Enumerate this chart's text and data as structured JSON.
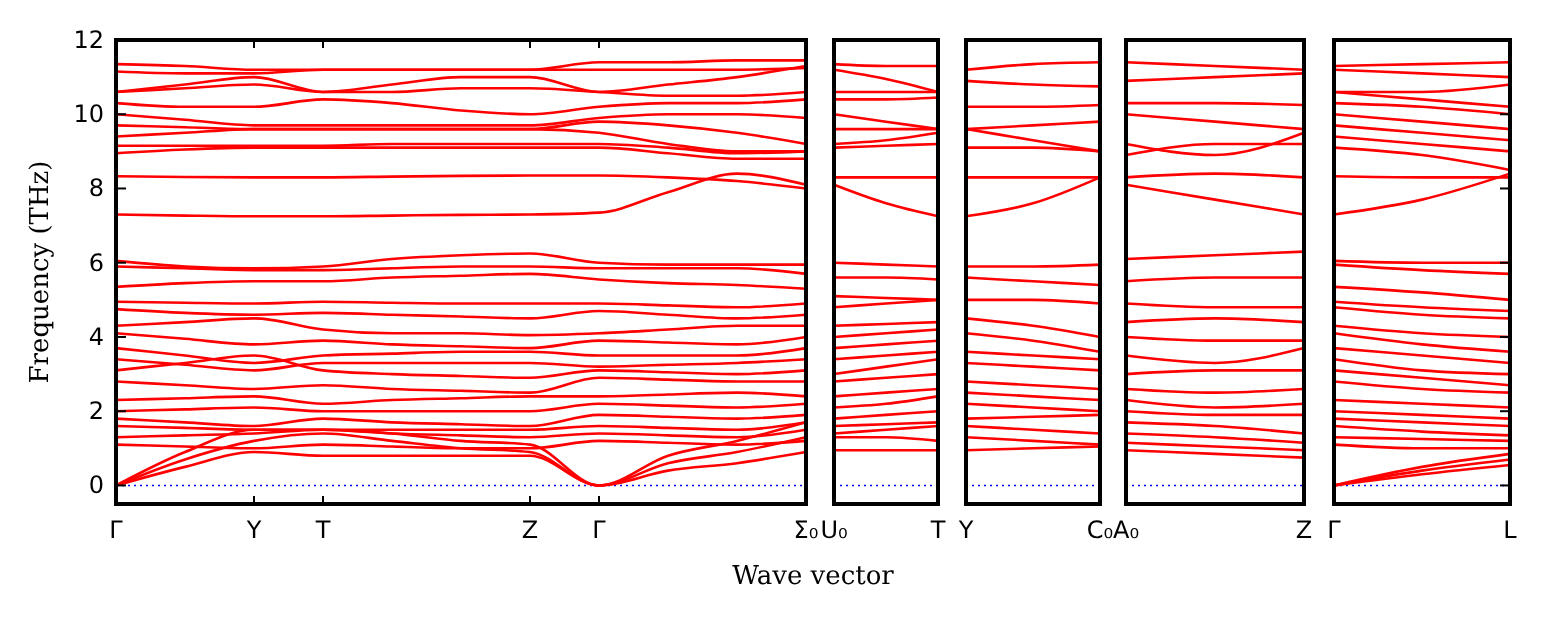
{
  "chart_data": [
    {
      "type": "line",
      "ylabel": "Frequency (THz)",
      "xlabel": "Wave vector",
      "categories": [
        "Γ",
        null,
        "Y",
        "T",
        null,
        null,
        "Z",
        "Γ",
        null,
        null,
        "Σ₀"
      ],
      "ylim": [
        -0.5,
        12
      ],
      "yticks": [
        0,
        2,
        4,
        6,
        8,
        10,
        12
      ],
      "ref_lines": [
        {
          "axis": "y",
          "value": 0,
          "color": "#0000ff",
          "line_style": "dotted"
        }
      ],
      "series": [
        {
          "color": "#ff0000",
          "values": [
            11.35,
            11.3,
            11.2,
            11.2,
            11.2,
            11.2,
            11.2,
            11.4,
            11.4,
            11.45,
            11.45
          ]
        },
        {
          "color": "#ff0000",
          "values": [
            11.15,
            11.1,
            11.1,
            11.2,
            11.2,
            11.2,
            11.2,
            11.2,
            11.2,
            11.2,
            11.25
          ]
        },
        {
          "color": "#ff0000",
          "values": [
            10.6,
            10.8,
            11.0,
            10.6,
            10.8,
            11.0,
            11.0,
            10.6,
            10.8,
            11.0,
            11.3
          ]
        },
        {
          "color": "#ff0000",
          "values": [
            10.6,
            10.7,
            10.8,
            10.6,
            10.6,
            10.7,
            10.7,
            10.6,
            10.5,
            10.5,
            10.6
          ]
        },
        {
          "color": "#ff0000",
          "values": [
            10.3,
            10.2,
            10.2,
            10.4,
            10.3,
            10.1,
            10.0,
            10.2,
            10.3,
            10.3,
            10.4
          ]
        },
        {
          "color": "#ff0000",
          "values": [
            10.0,
            9.85,
            9.7,
            9.7,
            9.7,
            9.7,
            9.7,
            9.9,
            10.0,
            10.0,
            9.9
          ]
        },
        {
          "color": "#ff0000",
          "values": [
            9.7,
            9.65,
            9.6,
            9.6,
            9.6,
            9.6,
            9.6,
            9.8,
            9.7,
            9.5,
            9.2
          ]
        },
        {
          "color": "#ff0000",
          "values": [
            9.4,
            9.5,
            9.6,
            9.6,
            9.6,
            9.6,
            9.6,
            9.5,
            9.2,
            9.0,
            9.0
          ]
        },
        {
          "color": "#ff0000",
          "values": [
            9.15,
            9.15,
            9.15,
            9.15,
            9.2,
            9.2,
            9.2,
            9.2,
            9.1,
            8.95,
            9.0
          ]
        },
        {
          "color": "#ff0000",
          "values": [
            8.95,
            9.05,
            9.1,
            9.1,
            9.1,
            9.1,
            9.1,
            9.1,
            8.95,
            8.8,
            8.8
          ]
        },
        {
          "color": "#ff0000",
          "values": [
            8.33,
            8.31,
            8.3,
            8.3,
            8.32,
            8.34,
            8.35,
            8.35,
            8.3,
            8.2,
            8.0
          ]
        },
        {
          "color": "#ff0000",
          "values": [
            7.3,
            7.27,
            7.25,
            7.25,
            7.27,
            7.29,
            7.3,
            7.35,
            7.9,
            8.4,
            8.1
          ]
        },
        {
          "color": "#ff0000",
          "values": [
            6.05,
            5.9,
            5.85,
            5.9,
            6.1,
            6.2,
            6.25,
            6.0,
            5.95,
            5.95,
            5.95
          ]
        },
        {
          "color": "#ff0000",
          "values": [
            5.9,
            5.85,
            5.8,
            5.8,
            5.85,
            5.9,
            5.9,
            5.85,
            5.85,
            5.85,
            5.7
          ]
        },
        {
          "color": "#ff0000",
          "values": [
            5.35,
            5.45,
            5.5,
            5.5,
            5.6,
            5.65,
            5.7,
            5.55,
            5.45,
            5.4,
            5.3
          ]
        },
        {
          "color": "#ff0000",
          "values": [
            4.95,
            4.92,
            4.9,
            4.95,
            4.92,
            4.9,
            4.9,
            4.9,
            4.85,
            4.8,
            4.9
          ]
        },
        {
          "color": "#ff0000",
          "values": [
            4.75,
            4.65,
            4.6,
            4.65,
            4.6,
            4.55,
            4.5,
            4.7,
            4.6,
            4.5,
            4.6
          ]
        },
        {
          "color": "#ff0000",
          "values": [
            4.3,
            4.4,
            4.5,
            4.2,
            4.1,
            4.1,
            4.05,
            4.1,
            4.2,
            4.3,
            4.3
          ]
        },
        {
          "color": "#ff0000",
          "values": [
            4.1,
            3.95,
            3.8,
            3.9,
            3.8,
            3.75,
            3.7,
            3.9,
            3.85,
            3.8,
            4.0
          ]
        },
        {
          "color": "#ff0000",
          "values": [
            3.7,
            3.5,
            3.3,
            3.5,
            3.55,
            3.6,
            3.6,
            3.5,
            3.5,
            3.5,
            3.7
          ]
        },
        {
          "color": "#ff0000",
          "values": [
            3.4,
            3.25,
            3.1,
            3.3,
            3.3,
            3.3,
            3.3,
            3.2,
            3.25,
            3.3,
            3.4
          ]
        },
        {
          "color": "#ff0000",
          "values": [
            3.1,
            3.3,
            3.5,
            3.1,
            3.0,
            2.95,
            2.9,
            3.1,
            3.05,
            3.0,
            3.1
          ]
        },
        {
          "color": "#ff0000",
          "values": [
            2.8,
            2.7,
            2.6,
            2.7,
            2.6,
            2.55,
            2.5,
            2.9,
            2.85,
            2.8,
            2.8
          ]
        },
        {
          "color": "#ff0000",
          "values": [
            2.3,
            2.35,
            2.4,
            2.2,
            2.3,
            2.35,
            2.4,
            2.4,
            2.45,
            2.5,
            2.4
          ]
        },
        {
          "color": "#ff0000",
          "values": [
            2.0,
            2.05,
            2.1,
            2.0,
            2.0,
            2.0,
            2.0,
            2.2,
            2.15,
            2.1,
            2.2
          ]
        },
        {
          "color": "#ff0000",
          "values": [
            1.8,
            1.7,
            1.6,
            1.8,
            1.7,
            1.65,
            1.6,
            1.9,
            1.85,
            1.8,
            1.9
          ]
        },
        {
          "color": "#ff0000",
          "values": [
            1.6,
            1.55,
            1.5,
            1.5,
            1.5,
            1.5,
            1.5,
            1.6,
            1.55,
            1.5,
            1.7
          ]
        },
        {
          "color": "#ff0000",
          "values": [
            1.3,
            1.35,
            1.4,
            1.5,
            1.4,
            1.35,
            1.3,
            1.4,
            1.35,
            1.3,
            1.5
          ]
        },
        {
          "color": "#ff0000",
          "values": [
            1.1,
            1.05,
            1.0,
            1.1,
            1.05,
            1.0,
            1.0,
            1.2,
            1.15,
            1.1,
            1.2
          ]
        },
        {
          "color": "#ff0000",
          "values": [
            0,
            0.9,
            1.5,
            1.5,
            1.4,
            1.2,
            1.1,
            0,
            0.8,
            1.2,
            1.7
          ]
        },
        {
          "color": "#ff0000",
          "values": [
            0,
            0.7,
            1.2,
            1.4,
            1.2,
            1.0,
            0.9,
            0,
            0.6,
            0.9,
            1.3
          ]
        },
        {
          "color": "#ff0000",
          "values": [
            0,
            0.5,
            0.9,
            0.8,
            0.8,
            0.8,
            0.8,
            0,
            0.4,
            0.6,
            0.9
          ]
        }
      ]
    },
    {
      "type": "line",
      "categories": [
        "U₀",
        null,
        "T"
      ],
      "ylim": [
        -0.5,
        12
      ],
      "yticks": [
        0,
        2,
        4,
        6,
        8,
        10,
        12
      ],
      "tick_labels": "x",
      "ref_lines": [
        {
          "axis": "y",
          "value": 0,
          "color": "#0000ff",
          "line_style": "dotted"
        }
      ],
      "series": [
        {
          "color": "#ff0000",
          "values": [
            11.35,
            11.3,
            11.3
          ]
        },
        {
          "color": "#ff0000",
          "values": [
            11.2,
            10.95,
            10.6
          ]
        },
        {
          "color": "#ff0000",
          "values": [
            10.6,
            10.6,
            10.6
          ]
        },
        {
          "color": "#ff0000",
          "values": [
            10.4,
            10.4,
            10.45
          ]
        },
        {
          "color": "#ff0000",
          "values": [
            10.0,
            9.8,
            9.6
          ]
        },
        {
          "color": "#ff0000",
          "values": [
            9.6,
            9.6,
            9.6
          ]
        },
        {
          "color": "#ff0000",
          "values": [
            9.2,
            9.3,
            9.5
          ]
        },
        {
          "color": "#ff0000",
          "values": [
            9.1,
            9.15,
            9.2
          ]
        },
        {
          "color": "#ff0000",
          "values": [
            8.3,
            8.3,
            8.3
          ]
        },
        {
          "color": "#ff0000",
          "values": [
            8.1,
            7.6,
            7.25
          ]
        },
        {
          "color": "#ff0000",
          "values": [
            6.0,
            5.95,
            5.9
          ]
        },
        {
          "color": "#ff0000",
          "values": [
            5.6,
            5.6,
            5.55
          ]
        },
        {
          "color": "#ff0000",
          "values": [
            5.1,
            5.05,
            5.0
          ]
        },
        {
          "color": "#ff0000",
          "values": [
            4.8,
            4.9,
            5.0
          ]
        },
        {
          "color": "#ff0000",
          "values": [
            4.3,
            4.35,
            4.4
          ]
        },
        {
          "color": "#ff0000",
          "values": [
            4.0,
            4.1,
            4.2
          ]
        },
        {
          "color": "#ff0000",
          "values": [
            3.7,
            3.8,
            3.9
          ]
        },
        {
          "color": "#ff0000",
          "values": [
            3.4,
            3.5,
            3.6
          ]
        },
        {
          "color": "#ff0000",
          "values": [
            3.0,
            3.2,
            3.4
          ]
        },
        {
          "color": "#ff0000",
          "values": [
            2.8,
            2.9,
            3.0
          ]
        },
        {
          "color": "#ff0000",
          "values": [
            2.4,
            2.5,
            2.6
          ]
        },
        {
          "color": "#ff0000",
          "values": [
            2.1,
            2.2,
            2.4
          ]
        },
        {
          "color": "#ff0000",
          "values": [
            1.8,
            1.9,
            2.0
          ]
        },
        {
          "color": "#ff0000",
          "values": [
            1.6,
            1.65,
            1.7
          ]
        },
        {
          "color": "#ff0000",
          "values": [
            1.4,
            1.5,
            1.6
          ]
        },
        {
          "color": "#ff0000",
          "values": [
            1.3,
            1.3,
            1.2
          ]
        },
        {
          "color": "#ff0000",
          "values": [
            0.95,
            0.95,
            0.95
          ]
        }
      ]
    },
    {
      "type": "line",
      "categories": [
        "Y",
        null,
        "C₀"
      ],
      "ylim": [
        -0.5,
        12
      ],
      "yticks": [
        0,
        2,
        4,
        6,
        8,
        10,
        12
      ],
      "tick_labels": "x",
      "ref_lines": [
        {
          "axis": "y",
          "value": 0,
          "color": "#0000ff",
          "line_style": "dotted"
        }
      ],
      "series": [
        {
          "color": "#ff0000",
          "values": [
            11.2,
            11.35,
            11.4
          ]
        },
        {
          "color": "#ff0000",
          "values": [
            10.9,
            10.8,
            10.75
          ]
        },
        {
          "color": "#ff0000",
          "values": [
            10.2,
            10.2,
            10.25
          ]
        },
        {
          "color": "#ff0000",
          "values": [
            9.6,
            9.7,
            9.8
          ]
        },
        {
          "color": "#ff0000",
          "values": [
            9.6,
            9.3,
            9.0
          ]
        },
        {
          "color": "#ff0000",
          "values": [
            9.1,
            9.1,
            9.0
          ]
        },
        {
          "color": "#ff0000",
          "values": [
            8.3,
            8.3,
            8.3
          ]
        },
        {
          "color": "#ff0000",
          "values": [
            7.25,
            7.6,
            8.3
          ]
        },
        {
          "color": "#ff0000",
          "values": [
            5.9,
            5.9,
            5.95
          ]
        },
        {
          "color": "#ff0000",
          "values": [
            5.6,
            5.5,
            5.4
          ]
        },
        {
          "color": "#ff0000",
          "values": [
            5.0,
            5.0,
            4.9
          ]
        },
        {
          "color": "#ff0000",
          "values": [
            4.5,
            4.3,
            4.0
          ]
        },
        {
          "color": "#ff0000",
          "values": [
            4.1,
            3.9,
            3.6
          ]
        },
        {
          "color": "#ff0000",
          "values": [
            3.6,
            3.5,
            3.4
          ]
        },
        {
          "color": "#ff0000",
          "values": [
            3.3,
            3.2,
            3.1
          ]
        },
        {
          "color": "#ff0000",
          "values": [
            2.8,
            2.7,
            2.6
          ]
        },
        {
          "color": "#ff0000",
          "values": [
            2.5,
            2.4,
            2.3
          ]
        },
        {
          "color": "#ff0000",
          "values": [
            2.2,
            2.1,
            2.0
          ]
        },
        {
          "color": "#ff0000",
          "values": [
            1.8,
            1.85,
            1.9
          ]
        },
        {
          "color": "#ff0000",
          "values": [
            1.6,
            1.5,
            1.4
          ]
        },
        {
          "color": "#ff0000",
          "values": [
            1.3,
            1.2,
            1.1
          ]
        },
        {
          "color": "#ff0000",
          "values": [
            0.95,
            1.0,
            1.05
          ]
        }
      ]
    },
    {
      "type": "line",
      "categories": [
        "A₀",
        null,
        "Z"
      ],
      "ylim": [
        -0.5,
        12
      ],
      "yticks": [
        0,
        2,
        4,
        6,
        8,
        10,
        12
      ],
      "tick_labels": "x",
      "ref_lines": [
        {
          "axis": "y",
          "value": 0,
          "color": "#0000ff",
          "line_style": "dotted"
        }
      ],
      "series": [
        {
          "color": "#ff0000",
          "values": [
            11.4,
            11.3,
            11.2
          ]
        },
        {
          "color": "#ff0000",
          "values": [
            10.9,
            11.0,
            11.1
          ]
        },
        {
          "color": "#ff0000",
          "values": [
            10.3,
            10.3,
            10.25
          ]
        },
        {
          "color": "#ff0000",
          "values": [
            10.0,
            9.8,
            9.6
          ]
        },
        {
          "color": "#ff0000",
          "values": [
            9.2,
            8.9,
            9.5
          ]
        },
        {
          "color": "#ff0000",
          "values": [
            8.9,
            9.2,
            9.2
          ]
        },
        {
          "color": "#ff0000",
          "values": [
            8.3,
            8.4,
            8.3
          ]
        },
        {
          "color": "#ff0000",
          "values": [
            8.1,
            7.7,
            7.3
          ]
        },
        {
          "color": "#ff0000",
          "values": [
            6.1,
            6.2,
            6.3
          ]
        },
        {
          "color": "#ff0000",
          "values": [
            5.5,
            5.6,
            5.6
          ]
        },
        {
          "color": "#ff0000",
          "values": [
            4.9,
            4.8,
            4.8
          ]
        },
        {
          "color": "#ff0000",
          "values": [
            4.4,
            4.5,
            4.4
          ]
        },
        {
          "color": "#ff0000",
          "values": [
            4.0,
            3.9,
            3.9
          ]
        },
        {
          "color": "#ff0000",
          "values": [
            3.5,
            3.3,
            3.7
          ]
        },
        {
          "color": "#ff0000",
          "values": [
            3.0,
            3.1,
            3.1
          ]
        },
        {
          "color": "#ff0000",
          "values": [
            2.6,
            2.5,
            2.6
          ]
        },
        {
          "color": "#ff0000",
          "values": [
            2.3,
            2.1,
            2.2
          ]
        },
        {
          "color": "#ff0000",
          "values": [
            2.0,
            1.9,
            1.9
          ]
        },
        {
          "color": "#ff0000",
          "values": [
            1.7,
            1.6,
            1.4
          ]
        },
        {
          "color": "#ff0000",
          "values": [
            1.4,
            1.3,
            1.15
          ]
        },
        {
          "color": "#ff0000",
          "values": [
            1.15,
            1.05,
            0.95
          ]
        },
        {
          "color": "#ff0000",
          "values": [
            0.95,
            0.85,
            0.75
          ]
        }
      ]
    },
    {
      "type": "line",
      "categories": [
        "Γ",
        null,
        "L"
      ],
      "ylim": [
        -0.5,
        12
      ],
      "yticks": [
        0,
        2,
        4,
        6,
        8,
        10,
        12
      ],
      "tick_labels": "x",
      "ref_lines": [
        {
          "axis": "y",
          "value": 0,
          "color": "#0000ff",
          "line_style": "dotted"
        }
      ],
      "series": [
        {
          "color": "#ff0000",
          "values": [
            11.3,
            11.35,
            11.4
          ]
        },
        {
          "color": "#ff0000",
          "values": [
            11.2,
            11.1,
            11.0
          ]
        },
        {
          "color": "#ff0000",
          "values": [
            10.6,
            10.6,
            10.8
          ]
        },
        {
          "color": "#ff0000",
          "values": [
            10.6,
            10.4,
            10.2
          ]
        },
        {
          "color": "#ff0000",
          "values": [
            10.3,
            10.2,
            10.0
          ]
        },
        {
          "color": "#ff0000",
          "values": [
            10.0,
            9.8,
            9.6
          ]
        },
        {
          "color": "#ff0000",
          "values": [
            9.7,
            9.5,
            9.3
          ]
        },
        {
          "color": "#ff0000",
          "values": [
            9.4,
            9.2,
            9.0
          ]
        },
        {
          "color": "#ff0000",
          "values": [
            9.1,
            8.9,
            8.5
          ]
        },
        {
          "color": "#ff0000",
          "values": [
            8.33,
            8.3,
            8.3
          ]
        },
        {
          "color": "#ff0000",
          "values": [
            7.3,
            7.7,
            8.4
          ]
        },
        {
          "color": "#ff0000",
          "values": [
            6.05,
            6.0,
            6.0
          ]
        },
        {
          "color": "#ff0000",
          "values": [
            5.95,
            5.8,
            5.7
          ]
        },
        {
          "color": "#ff0000",
          "values": [
            5.35,
            5.2,
            5.0
          ]
        },
        {
          "color": "#ff0000",
          "values": [
            4.95,
            4.8,
            4.7
          ]
        },
        {
          "color": "#ff0000",
          "values": [
            4.8,
            4.6,
            4.5
          ]
        },
        {
          "color": "#ff0000",
          "values": [
            4.3,
            4.1,
            4.0
          ]
        },
        {
          "color": "#ff0000",
          "values": [
            4.1,
            3.8,
            3.6
          ]
        },
        {
          "color": "#ff0000",
          "values": [
            3.7,
            3.5,
            3.3
          ]
        },
        {
          "color": "#ff0000",
          "values": [
            3.4,
            3.1,
            3.0
          ]
        },
        {
          "color": "#ff0000",
          "values": [
            3.1,
            2.9,
            2.7
          ]
        },
        {
          "color": "#ff0000",
          "values": [
            2.8,
            2.6,
            2.5
          ]
        },
        {
          "color": "#ff0000",
          "values": [
            2.3,
            2.2,
            2.1
          ]
        },
        {
          "color": "#ff0000",
          "values": [
            2.0,
            1.9,
            1.8
          ]
        },
        {
          "color": "#ff0000",
          "values": [
            1.8,
            1.7,
            1.6
          ]
        },
        {
          "color": "#ff0000",
          "values": [
            1.6,
            1.45,
            1.35
          ]
        },
        {
          "color": "#ff0000",
          "values": [
            1.3,
            1.25,
            1.2
          ]
        },
        {
          "color": "#ff0000",
          "values": [
            1.1,
            1.0,
            1.0
          ]
        },
        {
          "color": "#ff0000",
          "values": [
            0,
            0.5,
            0.85
          ]
        },
        {
          "color": "#ff0000",
          "values": [
            0,
            0.4,
            0.7
          ]
        },
        {
          "color": "#ff0000",
          "values": [
            0,
            0.3,
            0.55
          ]
        }
      ]
    }
  ]
}
